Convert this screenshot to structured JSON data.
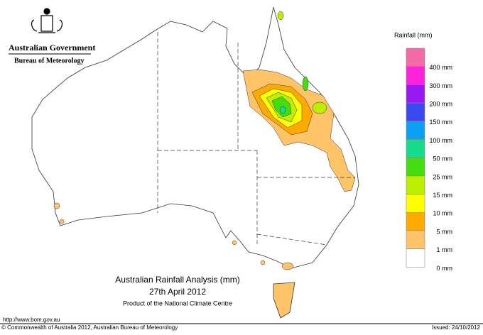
{
  "header": {
    "agency": "Australian Government",
    "bureau": "Bureau of Meteorology"
  },
  "legend": {
    "title": "Rainfall (mm)",
    "items": [
      {
        "label": "400 mm",
        "color": "#f26aa6"
      },
      {
        "label": "300 mm",
        "color": "#ff22dd"
      },
      {
        "label": "200 mm",
        "color": "#9a18f0"
      },
      {
        "label": "150 mm",
        "color": "#3a48f0"
      },
      {
        "label": "100 mm",
        "color": "#0aa0f5"
      },
      {
        "label": "50 mm",
        "color": "#14dc8c"
      },
      {
        "label": "25 mm",
        "color": "#44dd10"
      },
      {
        "label": "15 mm",
        "color": "#bdf000"
      },
      {
        "label": "10 mm",
        "color": "#ffff00"
      },
      {
        "label": "5 mm",
        "color": "#ffaa00"
      },
      {
        "label": "1 mm",
        "color": "#ffc468"
      },
      {
        "label": "0 mm",
        "color": "#ffffff"
      }
    ]
  },
  "map": {
    "title": "Australian Rainfall Analysis (mm)",
    "date": "27th April 2012",
    "product": "Product of the National Climate Centre"
  },
  "footer": {
    "url": "http://www.bom.gov.au",
    "copyright": "© Commonwealth of Australia 2012, Australian Bureau of Meteorology",
    "issued": "Issued: 24/10/2012"
  }
}
